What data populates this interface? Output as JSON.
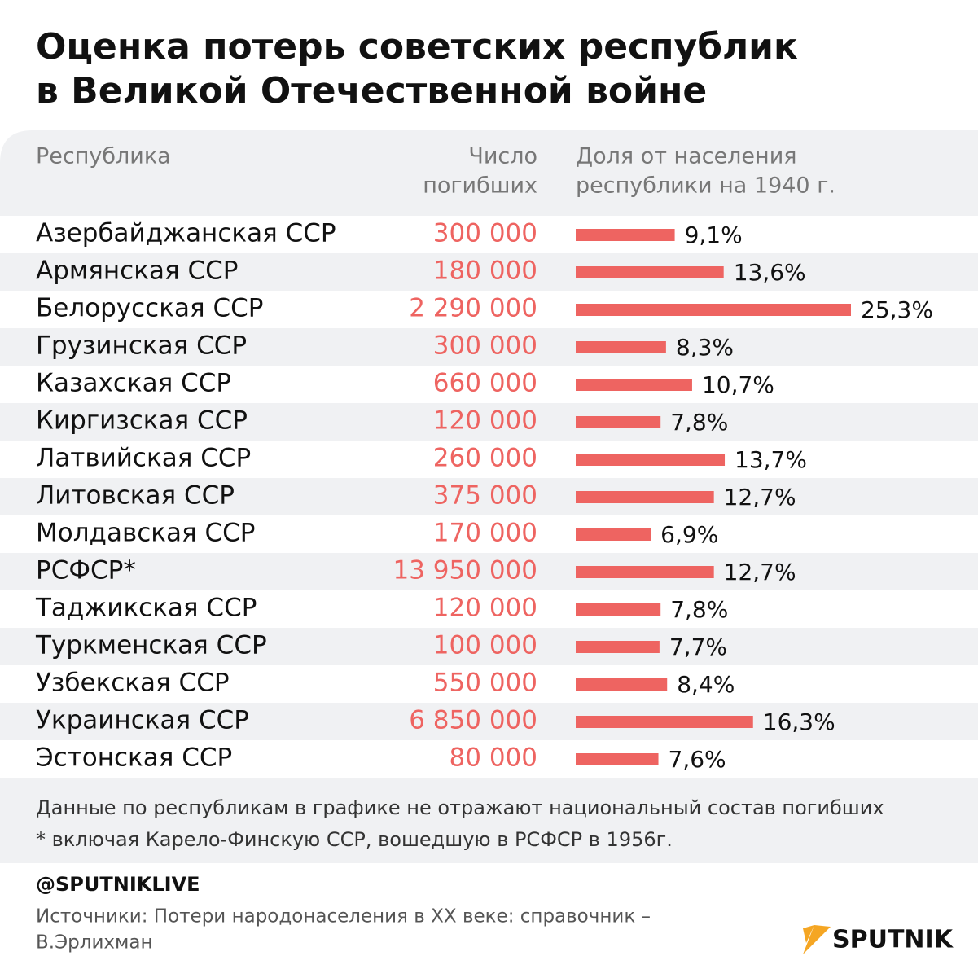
{
  "chart_data": {
    "type": "bar",
    "title": [
      "Оценка потерь советских республик",
      "в Великой Отечественной войне"
    ],
    "column_headers": {
      "name": "Республика",
      "deaths": [
        "Число",
        "погибших"
      ],
      "share": [
        "Доля от населения",
        "республики на 1940 г."
      ]
    },
    "categories": [
      "Азербайджанская ССР",
      "Армянская ССР",
      "Белорусская ССР",
      "Грузинская ССР",
      "Казахская ССР",
      "Киргизская ССР",
      "Латвийская ССР",
      "Литовская ССР",
      "Молдавская ССР",
      "РСФСР*",
      "Таджикская ССР",
      "Туркменская ССР",
      "Узбекская ССР",
      "Украинская ССР",
      "Эстонская ССР"
    ],
    "deaths": [
      "300 000",
      "180 000",
      "2 290 000",
      "300 000",
      "660 000",
      "120 000",
      "260 000",
      "375 000",
      "170 000",
      "13 950 000",
      "120 000",
      "100 000",
      "550 000",
      "6 850 000",
      "80 000"
    ],
    "values": [
      9.1,
      13.6,
      25.3,
      8.3,
      10.7,
      7.8,
      13.7,
      12.7,
      6.9,
      12.7,
      7.8,
      7.7,
      8.4,
      16.3,
      7.6
    ],
    "value_labels": [
      "9,1%",
      "13,6%",
      "25,3%",
      "8,3%",
      "10,7%",
      "7,8%",
      "13,7%",
      "12,7%",
      "6,9%",
      "12,7%",
      "7,8%",
      "7,7%",
      "8,4%",
      "16,3%",
      "7,6%"
    ],
    "color": "#ee6461",
    "notes": [
      "Данные по республикам в графике не отражают национальный состав погибших",
      "* включая Карело-Финскую ССР, вошедшую в РСФСР в 1956г."
    ],
    "handle": "@SPUTNIKLIVE",
    "sources": [
      "Источники: Потери народонаселения в XX веке: справочник –",
      "В.Эрлихман"
    ],
    "logo": "SPUTNIK"
  }
}
